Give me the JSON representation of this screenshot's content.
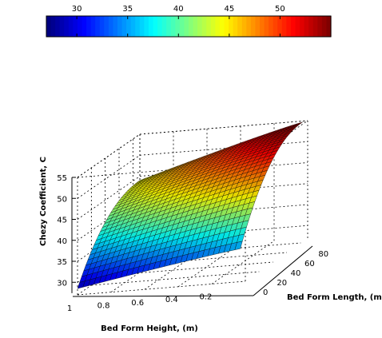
{
  "chart_data": {
    "type": "surface",
    "title": "",
    "xlabel": "Bed Form Height, (m)",
    "ylabel": "Bed Form Length, (m)",
    "zlabel": "Chezy Coefficient, C",
    "x_range": [
      0,
      1
    ],
    "y_range": [
      0,
      90
    ],
    "z_range": [
      27,
      55
    ],
    "x_ticks": [
      "1",
      "0.8",
      "0.6",
      "0.4",
      "0.2"
    ],
    "y_ticks": [
      "0",
      "20",
      "40",
      "60",
      "80"
    ],
    "z_ticks": [
      "30",
      "35",
      "40",
      "45",
      "50",
      "55"
    ],
    "colorbar": {
      "placement": "top",
      "ticks": [
        "30",
        "35",
        "40",
        "45",
        "50"
      ],
      "range": [
        27,
        55
      ],
      "colormap": "jet"
    },
    "corner_values": [
      {
        "x": 1.0,
        "y": 0,
        "z": 28.5
      },
      {
        "x": 1.0,
        "y": 90,
        "z": 44
      },
      {
        "x": 0.0,
        "y": 0,
        "z": 35
      },
      {
        "x": 0.0,
        "y": 90,
        "z": 55
      }
    ],
    "grid": true
  }
}
